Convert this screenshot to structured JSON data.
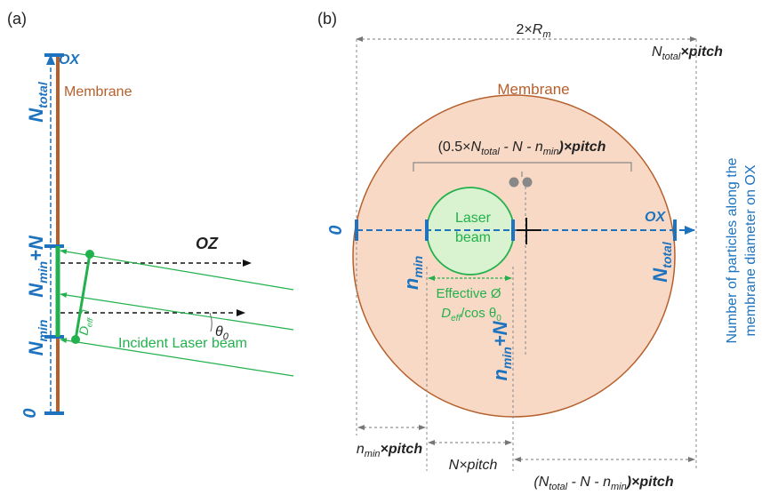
{
  "colors": {
    "blue": "#1e73be",
    "green": "#22b14c",
    "brown": "#b5602c",
    "membrane_fill": "#f8d9c6",
    "laser_fill": "#d9f2d0"
  },
  "panel_a": {
    "label": "(a)",
    "axis_ox": "OX",
    "axis_oz": "OZ",
    "membrane": "Membrane",
    "n_total": "N",
    "n_total_sub": "total",
    "n_min_plus_n": "N",
    "n_min_plus_n_sub": "min",
    "n_min_plus_n_suffix": "+N",
    "n_min": "N",
    "n_min_sub": "min",
    "zero": "0",
    "d_eff": "D",
    "d_eff_sub": "eff",
    "theta": "θ",
    "theta_sub": "0",
    "incident_beam": "Incident Laser beam"
  },
  "panel_b": {
    "label": "(b)",
    "two_rm_prefix": "2×",
    "two_rm_r": "R",
    "two_rm_sub": "m",
    "ntotal_pitch_n": "N",
    "ntotal_pitch_sub": "total",
    "ntotal_pitch_suffix": "×pitch",
    "membrane": "Membrane",
    "bracket_label_1": "(0.5×",
    "bracket_label_2": "N",
    "bracket_label_3": "total",
    "bracket_label_4": " - N - n",
    "bracket_label_5": "min",
    "bracket_label_6": ")×pitch",
    "laser_line1": "Laser",
    "laser_line2": "beam",
    "ox": "OX",
    "zero": "0",
    "n_min": "n",
    "n_min_sub": "min",
    "n_min_plus_n_suffix": "+N",
    "n_total": "N",
    "n_total_sub": "total",
    "effective_line1": "Effective Ø",
    "effective_d": "D",
    "effective_d_sub": "eff",
    "effective_cos": "/cos θ",
    "effective_cos_sub": "0",
    "nmin_pitch_n": "n",
    "nmin_pitch_sub": "min",
    "nmin_pitch_suffix": "×pitch",
    "n_pitch": "N×pitch",
    "rest_pitch_1": "(N",
    "rest_pitch_2": "total",
    "rest_pitch_3": " - N - n",
    "rest_pitch_4": "min",
    "rest_pitch_5": ")×pitch",
    "side_line1": "Number of particles along the",
    "side_line2": "membrane diameter on OX"
  }
}
